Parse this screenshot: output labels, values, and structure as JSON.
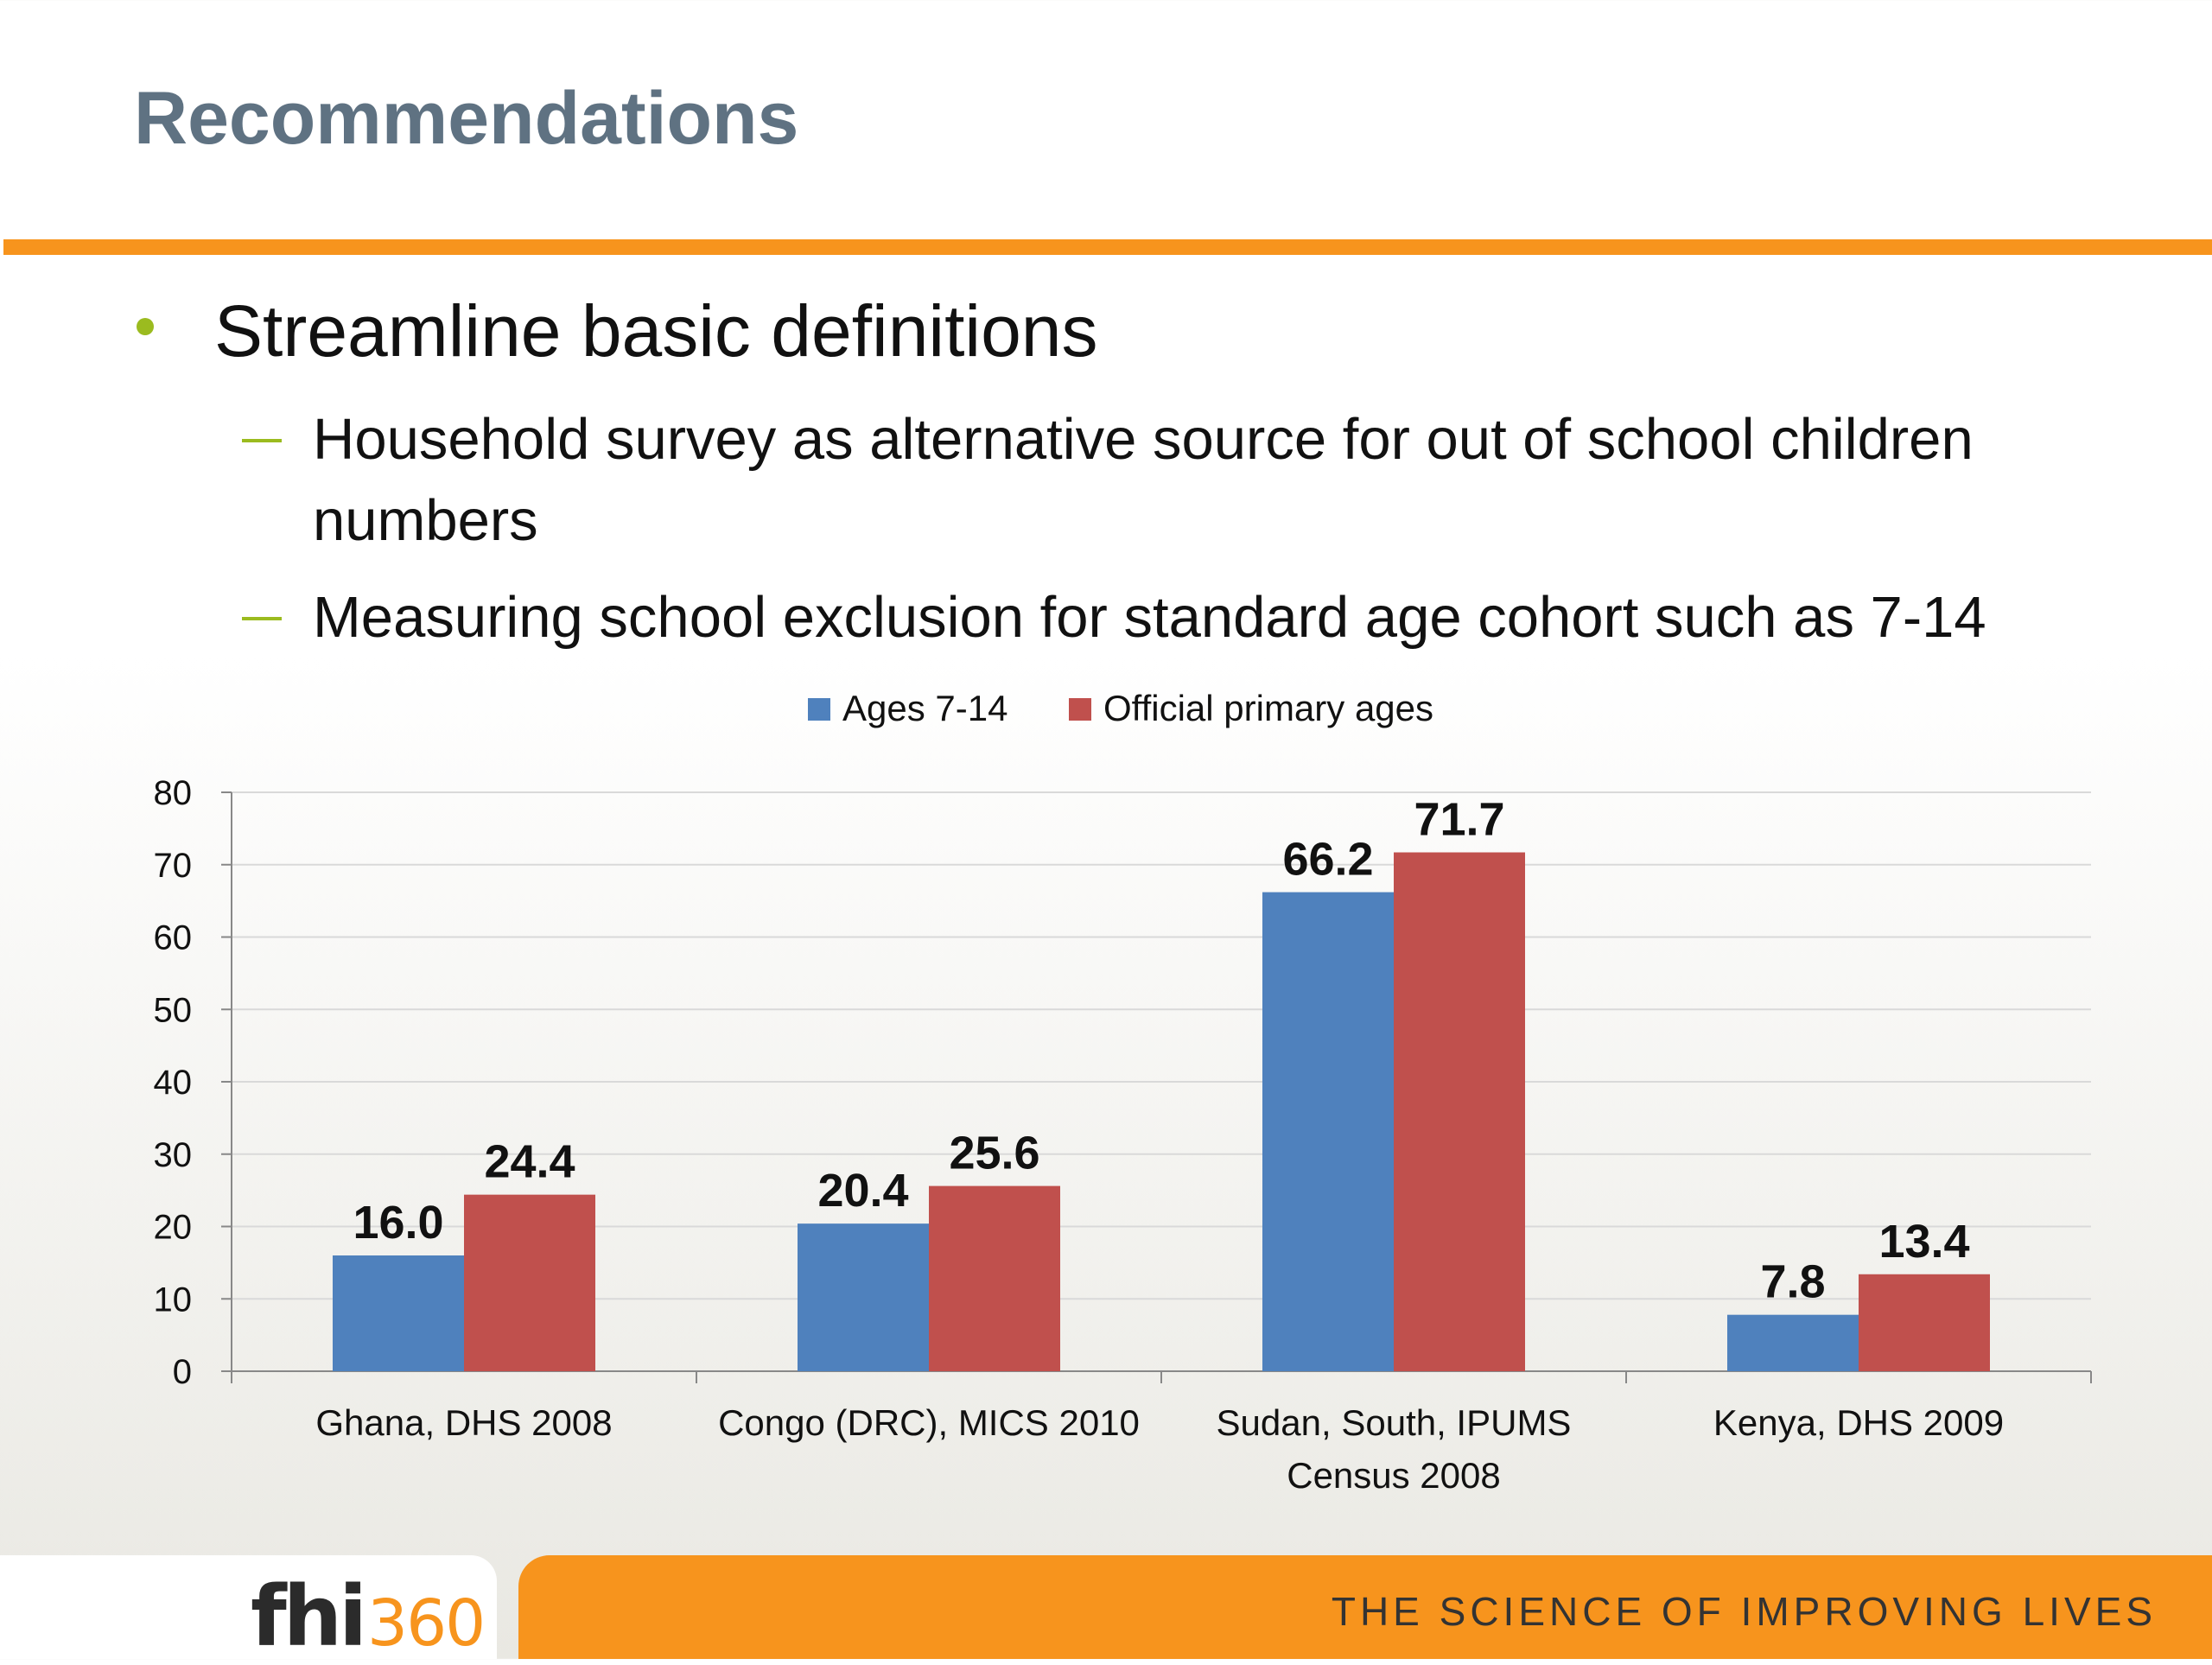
{
  "slide": {
    "title": "Recommendations",
    "bullet": "Streamline basic definitions",
    "sub_bullets": [
      "Household survey as alternative source for out of school children numbers",
      "Measuring school exclusion for standard age cohort such as 7-14"
    ]
  },
  "footer": {
    "logo_main": "fhi",
    "logo_number": "360",
    "tagline": "THE SCIENCE OF IMPROVING LIVES"
  },
  "colors": {
    "accent_orange": "#f7941d",
    "bullet_green": "#9bbb1f",
    "title_gray": "#5f7282",
    "series_blue": "#4f81bd",
    "series_red": "#c0504d"
  },
  "chart_data": {
    "type": "bar",
    "categories": [
      [
        "Ghana, DHS 2008"
      ],
      [
        "Congo (DRC), MICS 2010"
      ],
      [
        "Sudan, South, IPUMS",
        "Census 2008"
      ],
      [
        "Kenya, DHS 2009"
      ]
    ],
    "series": [
      {
        "name": "Ages 7-14",
        "values": [
          16.0,
          20.4,
          66.2,
          7.8
        ],
        "labels": [
          "16.0",
          "20.4",
          "66.2",
          "7.8"
        ],
        "color": "#4f81bd"
      },
      {
        "name": "Official primary ages",
        "values": [
          24.4,
          25.6,
          71.7,
          13.4
        ],
        "labels": [
          "24.4",
          "25.6",
          "71.7",
          "13.4"
        ],
        "color": "#c0504d"
      }
    ],
    "ylim": [
      0,
      80
    ],
    "yticks": [
      "0",
      "10",
      "20",
      "30",
      "40",
      "50",
      "60",
      "70",
      "80"
    ],
    "grid": true,
    "legend_position": "top-center"
  }
}
